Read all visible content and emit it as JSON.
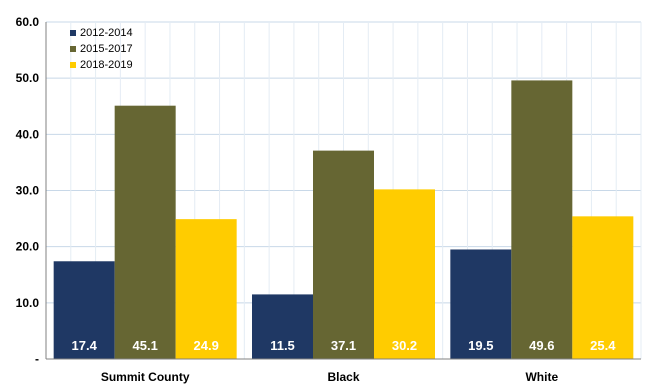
{
  "chart_data": {
    "type": "bar",
    "categories": [
      "Summit County",
      "Black",
      "White"
    ],
    "series": [
      {
        "name": "2012-2014",
        "values": [
          17.4,
          11.5,
          19.5
        ],
        "color": "#1f3864"
      },
      {
        "name": "2015-2017",
        "values": [
          45.1,
          37.1,
          49.6
        ],
        "color": "#666633"
      },
      {
        "name": "2018-2019",
        "values": [
          24.9,
          30.2,
          25.4
        ],
        "color": "#ffcc00"
      }
    ],
    "y_ticks": [
      "-",
      "10.0",
      "20.0",
      "30.0",
      "40.0",
      "50.0",
      "60.0"
    ],
    "ylim": [
      0,
      60
    ],
    "grid": true,
    "grid_color": "#c8d8e8",
    "legend_position": "top-left",
    "title": "",
    "xlabel": "",
    "ylabel": ""
  }
}
